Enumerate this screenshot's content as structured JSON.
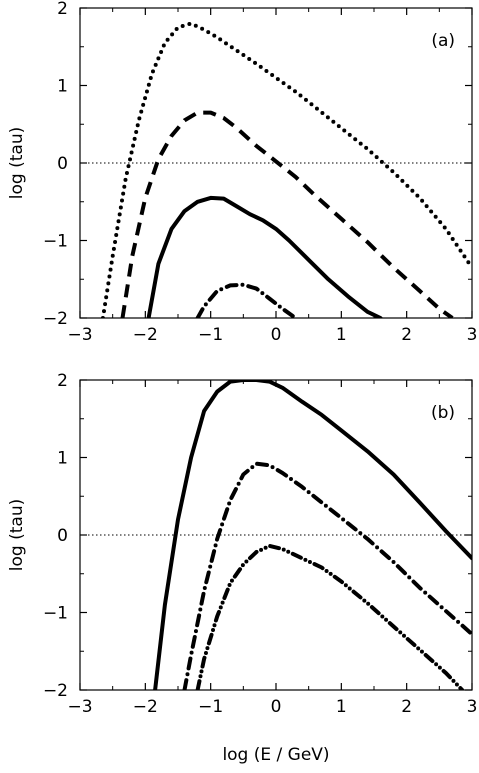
{
  "chart_data": [
    {
      "type": "line",
      "panel_label": "(a)",
      "xlabel": "",
      "ylabel": "log (tau)",
      "xlim": [
        -3,
        3
      ],
      "ylim": [
        -2,
        2
      ],
      "xticks": [
        -3,
        -2,
        -1,
        0,
        1,
        2,
        3
      ],
      "yticks": [
        -2,
        -1,
        0,
        1,
        2
      ],
      "xtick_labels": [
        "−3",
        "−2",
        "−1",
        "0",
        "1",
        "2",
        "3"
      ],
      "ytick_labels": [
        "−2",
        "−1",
        "0",
        "1",
        "2"
      ],
      "reference_line": {
        "y": 0,
        "style": "dotted"
      },
      "series": [
        {
          "style": "dotted",
          "x": [
            -2.65,
            -2.5,
            -2.3,
            -2.1,
            -1.9,
            -1.7,
            -1.5,
            -1.3,
            -1.1,
            -0.9,
            -0.6,
            -0.3,
            0.0,
            0.3,
            0.6,
            1.0,
            1.4,
            1.8,
            2.2,
            2.6,
            3.0
          ],
          "y": [
            -2.0,
            -1.2,
            -0.2,
            0.55,
            1.15,
            1.55,
            1.75,
            1.8,
            1.72,
            1.62,
            1.45,
            1.28,
            1.1,
            0.92,
            0.72,
            0.45,
            0.18,
            -0.12,
            -0.45,
            -0.85,
            -1.35
          ]
        },
        {
          "style": "dashed",
          "x": [
            -2.35,
            -2.2,
            -2.0,
            -1.8,
            -1.6,
            -1.4,
            -1.2,
            -1.0,
            -0.8,
            -0.6,
            -0.3,
            0.0,
            0.3,
            0.6,
            1.0,
            1.4,
            1.8,
            2.2,
            2.5,
            2.7
          ],
          "y": [
            -2.0,
            -1.2,
            -0.45,
            0.05,
            0.35,
            0.55,
            0.65,
            0.65,
            0.58,
            0.45,
            0.22,
            0.02,
            -0.18,
            -0.42,
            -0.72,
            -1.02,
            -1.35,
            -1.65,
            -1.88,
            -2.0
          ]
        },
        {
          "style": "solid",
          "x": [
            -1.95,
            -1.8,
            -1.6,
            -1.4,
            -1.2,
            -1.0,
            -0.8,
            -0.6,
            -0.4,
            -0.2,
            0.0,
            0.2,
            0.5,
            0.8,
            1.1,
            1.4,
            1.6
          ],
          "y": [
            -2.0,
            -1.3,
            -0.85,
            -0.62,
            -0.5,
            -0.45,
            -0.46,
            -0.56,
            -0.66,
            -0.74,
            -0.85,
            -1.0,
            -1.25,
            -1.5,
            -1.72,
            -1.92,
            -2.0
          ]
        },
        {
          "style": "dash-dot",
          "x": [
            -1.2,
            -1.1,
            -0.9,
            -0.7,
            -0.5,
            -0.3,
            -0.1,
            0.1,
            0.3
          ],
          "y": [
            -2.0,
            -1.85,
            -1.65,
            -1.58,
            -1.57,
            -1.62,
            -1.75,
            -1.88,
            -2.0
          ]
        }
      ]
    },
    {
      "type": "line",
      "panel_label": "(b)",
      "xlabel": "log (E / GeV)",
      "ylabel": "log (tau)",
      "xlim": [
        -3,
        3
      ],
      "ylim": [
        -2,
        2
      ],
      "xticks": [
        -3,
        -2,
        -1,
        0,
        1,
        2,
        3
      ],
      "yticks": [
        -2,
        -1,
        0,
        1,
        2
      ],
      "xtick_labels": [
        "−3",
        "−2",
        "−1",
        "0",
        "1",
        "2",
        "3"
      ],
      "ytick_labels": [
        "−2",
        "−1",
        "0",
        "1",
        "2"
      ],
      "reference_line": {
        "y": 0,
        "style": "dotted"
      },
      "series": [
        {
          "style": "solid",
          "x": [
            -1.85,
            -1.7,
            -1.5,
            -1.3,
            -1.1,
            -0.9,
            -0.7,
            -0.5,
            -0.3,
            -0.1,
            0.1,
            0.4,
            0.7,
            1.0,
            1.4,
            1.8,
            2.2,
            2.6,
            3.0
          ],
          "y": [
            -2.0,
            -0.9,
            0.2,
            1.0,
            1.6,
            1.85,
            1.98,
            2.0,
            2.0,
            1.98,
            1.9,
            1.72,
            1.55,
            1.35,
            1.08,
            0.78,
            0.42,
            0.05,
            -0.3
          ]
        },
        {
          "style": "dash-dot",
          "x": [
            -1.4,
            -1.3,
            -1.1,
            -0.9,
            -0.7,
            -0.5,
            -0.3,
            -0.1,
            0.1,
            0.4,
            0.7,
            1.0,
            1.4,
            1.8,
            2.2,
            2.6,
            3.0
          ],
          "y": [
            -2.0,
            -1.55,
            -0.72,
            -0.05,
            0.45,
            0.78,
            0.92,
            0.9,
            0.8,
            0.62,
            0.42,
            0.22,
            -0.05,
            -0.35,
            -0.68,
            -0.98,
            -1.28
          ]
        },
        {
          "style": "dash-dot-dot",
          "x": [
            -1.2,
            -1.1,
            -0.9,
            -0.7,
            -0.5,
            -0.3,
            -0.1,
            0.1,
            0.4,
            0.7,
            1.0,
            1.4,
            1.8,
            2.2,
            2.6,
            2.85
          ],
          "y": [
            -2.0,
            -1.6,
            -1.05,
            -0.62,
            -0.38,
            -0.22,
            -0.14,
            -0.18,
            -0.3,
            -0.42,
            -0.6,
            -0.88,
            -1.18,
            -1.48,
            -1.78,
            -2.0
          ]
        }
      ]
    }
  ]
}
